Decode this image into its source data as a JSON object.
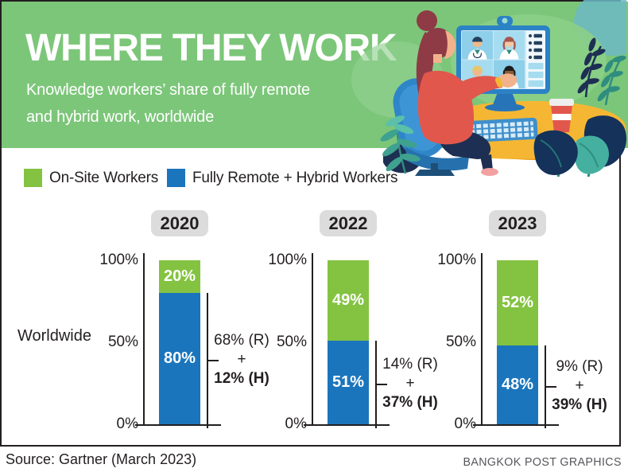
{
  "colors": {
    "banner_green": "#7cc679",
    "onsite_green": "#84c341",
    "remote_blue": "#1b75bc",
    "badge_gray": "#dcdcdc",
    "text_dark": "#231f20"
  },
  "header": {
    "title": "WHERE THEY WORK",
    "subtitle": "Knowledge workers’ share of fully remote\nand hybrid work, worldwide"
  },
  "legend": {
    "onsite_label": "On-Site Workers",
    "remote_label": "Fully Remote + Hybrid Workers"
  },
  "row_label": "Worldwide",
  "axis": {
    "ticks": [
      "100%",
      "50%",
      "0%"
    ]
  },
  "charts": [
    {
      "year": "2020",
      "onsite_label": "20%",
      "remote_label": "80%",
      "annotation": {
        "remote": "68% (R)",
        "plus": "+",
        "hybrid": "12% (H)"
      }
    },
    {
      "year": "2022",
      "onsite_label": "49%",
      "remote_label": "51%",
      "annotation": {
        "remote": "14% (R)",
        "plus": "+",
        "hybrid": "37% (H)"
      }
    },
    {
      "year": "2023",
      "onsite_label": "52%",
      "remote_label": "48%",
      "annotation": {
        "remote": "9% (R)",
        "plus": "+",
        "hybrid": "39% (H)"
      }
    }
  ],
  "footer": {
    "source": "Source: Gartner (March 2023)",
    "credit": "BANGKOK POST GRAPHICS"
  },
  "chart_data": {
    "type": "bar",
    "stacked": true,
    "title": "WHERE THEY WORK",
    "subtitle": "Knowledge workers' share of fully remote and hybrid work, worldwide",
    "categories": [
      "2020",
      "2022",
      "2023"
    ],
    "series": [
      {
        "name": "On-Site Workers",
        "color": "#84c341",
        "values": [
          20,
          49,
          52
        ]
      },
      {
        "name": "Fully Remote + Hybrid Workers",
        "color": "#1b75bc",
        "values": [
          80,
          51,
          48
        ]
      }
    ],
    "remote_hybrid_breakdown": [
      {
        "year": "2020",
        "fully_remote_pct": 68,
        "hybrid_pct": 12
      },
      {
        "year": "2022",
        "fully_remote_pct": 14,
        "hybrid_pct": 37
      },
      {
        "year": "2023",
        "fully_remote_pct": 9,
        "hybrid_pct": 39
      }
    ],
    "y_ticks": [
      "100%",
      "50%",
      "0%"
    ],
    "ylim": [
      0,
      100
    ],
    "row_label": "Worldwide",
    "legend_position": "top-left",
    "grid": false,
    "source": "Gartner (March 2023)"
  }
}
